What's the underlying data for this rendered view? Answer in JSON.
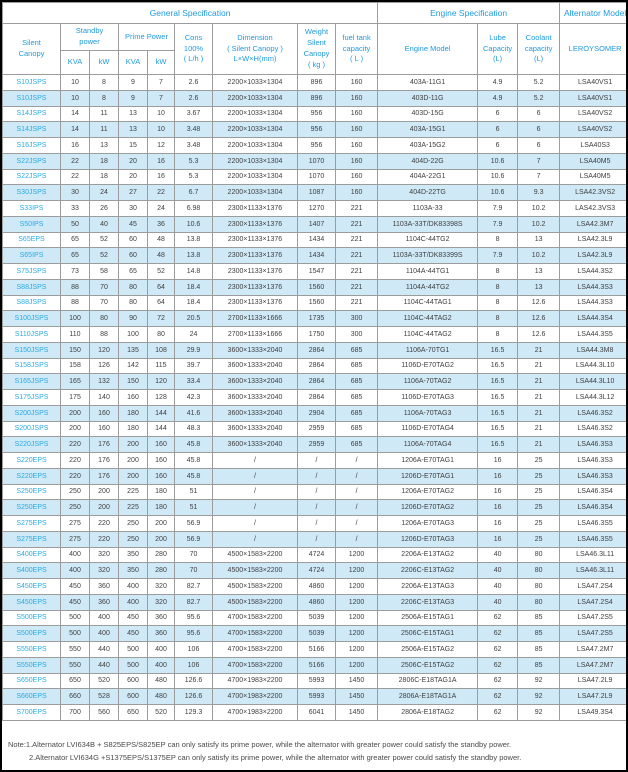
{
  "header": {
    "general": "General Specification",
    "engine": "Engine Specification",
    "alternator": "Alternator Model",
    "silent_canopy": "Silent\nCanopy",
    "standby": "Standby\npower",
    "prime": "Prime Power",
    "units": [
      "KVA",
      "kW",
      "KVA",
      "kW"
    ],
    "cons": "Cons\n100%\n( L/h )",
    "dimension": "Dimension\n( Silent Canopy )\nL×W×H(mm)",
    "weight": "Weight\nSilent\nCanopy\n( kg )",
    "fuel": "fuel tank\ncapacity\n( L )",
    "engine_model": "Engine Model",
    "lube": "Lube\nCapacity\n(L)",
    "coolant": "Coolant\ncapacity\n(L)",
    "leroysomer": "LEROYSOMER"
  },
  "table": {
    "column_keys": [
      "silent_canopy",
      "standby_kva",
      "standby_kw",
      "prime_kva",
      "prime_kw",
      "cons_100pct_lph",
      "dimension_lwh_mm",
      "weight_kg",
      "fuel_tank_l",
      "engine_model",
      "lube_capacity_l",
      "coolant_capacity_l",
      "alternator_leroysomer"
    ],
    "rows": [
      [
        "S10JSPS",
        "10",
        "8",
        "9",
        "7",
        "2.6",
        "2200×1033×1304",
        "896",
        "160",
        "403A-11G1",
        "4.9",
        "5.2",
        "LSA40VS1"
      ],
      [
        "S10JSPS",
        "10",
        "8",
        "9",
        "7",
        "2.6",
        "2200×1033×1304",
        "896",
        "160",
        "403D-11G",
        "4.9",
        "5.2",
        "LSA40VS1"
      ],
      [
        "S14JSPS",
        "14",
        "11",
        "13",
        "10",
        "3.67",
        "2200×1033×1304",
        "956",
        "160",
        "403D-15G",
        "6",
        "6",
        "LSA40VS2"
      ],
      [
        "S14JSPS",
        "14",
        "11",
        "13",
        "10",
        "3.48",
        "2200×1033×1304",
        "956",
        "160",
        "403A-15G1",
        "6",
        "6",
        "LSA40VS2"
      ],
      [
        "S16JSPS",
        "16",
        "13",
        "15",
        "12",
        "3.48",
        "2200×1033×1304",
        "956",
        "160",
        "403A-15G2",
        "6",
        "6",
        "LSA40S3"
      ],
      [
        "S22JSPS",
        "22",
        "18",
        "20",
        "16",
        "5.3",
        "2200×1033×1304",
        "1070",
        "160",
        "404D-22G",
        "10.6",
        "7",
        "LSA40M5"
      ],
      [
        "S22JSPS",
        "22",
        "18",
        "20",
        "16",
        "5.3",
        "2200×1033×1304",
        "1070",
        "160",
        "404A-22G1",
        "10.6",
        "7",
        "LSA40M5"
      ],
      [
        "S30JSPS",
        "30",
        "24",
        "27",
        "22",
        "6.7",
        "2200×1033×1304",
        "1087",
        "160",
        "404D-22TG",
        "10.6",
        "9.3",
        "LSA42.3VS2"
      ],
      [
        "S33IPS",
        "33",
        "26",
        "30",
        "24",
        "6.98",
        "2300×1133×1376",
        "1270",
        "221",
        "1103A-33",
        "7.9",
        "10.2",
        "LAS42.3VS3"
      ],
      [
        "S50IPS",
        "50",
        "40",
        "45",
        "36",
        "10.6",
        "2300×1133×1376",
        "1407",
        "221",
        "1103A-33T/DK83398S",
        "7.9",
        "10.2",
        "LSA42.3M7"
      ],
      [
        "S65EPS",
        "65",
        "52",
        "60",
        "48",
        "13.8",
        "2300×1133×1376",
        "1434",
        "221",
        "1104C-44TG2",
        "8",
        "13",
        "LSA42.3L9"
      ],
      [
        "S65IPS",
        "65",
        "52",
        "60",
        "48",
        "13.8",
        "2300×1133×1376",
        "1434",
        "221",
        "1103A-33T/DK83399S",
        "7.9",
        "10.2",
        "LSA42.3L9"
      ],
      [
        "S75JSPS",
        "73",
        "58",
        "65",
        "52",
        "14.8",
        "2300×1133×1376",
        "1547",
        "221",
        "1104A-44TG1",
        "8",
        "13",
        "LSA44.3S2"
      ],
      [
        "S88JSPS",
        "88",
        "70",
        "80",
        "64",
        "18.4",
        "2300×1133×1376",
        "1560",
        "221",
        "1104A-44TG2",
        "8",
        "13",
        "LSA44.3S3"
      ],
      [
        "S88JSPS",
        "88",
        "70",
        "80",
        "64",
        "18.4",
        "2300×1133×1376",
        "1560",
        "221",
        "1104C-44TAG1",
        "8",
        "12.6",
        "LSA44.3S3"
      ],
      [
        "S100JSPS",
        "100",
        "80",
        "90",
        "72",
        "20.5",
        "2700×1133×1666",
        "1735",
        "300",
        "1104C-44TAG2",
        "8",
        "12.6",
        "LSA44.3S4"
      ],
      [
        "S110JSPS",
        "110",
        "88",
        "100",
        "80",
        "24",
        "2700×1133×1666",
        "1750",
        "300",
        "1104C-44TAG2",
        "8",
        "12.6",
        "LSA44.3S5"
      ],
      [
        "S150JSPS",
        "150",
        "120",
        "135",
        "108",
        "29.9",
        "3600×1333×2040",
        "2864",
        "685",
        "1106A-70TG1",
        "16.5",
        "21",
        "LSA44.3M8"
      ],
      [
        "S158JSPS",
        "158",
        "126",
        "142",
        "115",
        "39.7",
        "3600×1333×2040",
        "2864",
        "685",
        "1106D-E70TAG2",
        "16.5",
        "21",
        "LSA44.3L10"
      ],
      [
        "S165JSPS",
        "165",
        "132",
        "150",
        "120",
        "33.4",
        "3600×1333×2040",
        "2864",
        "685",
        "1106A-70TAG2",
        "16.5",
        "21",
        "LSA44.3L10"
      ],
      [
        "S175JSPS",
        "175",
        "140",
        "160",
        "128",
        "42.3",
        "3600×1333×2040",
        "2864",
        "685",
        "1106D-E70TAG3",
        "16.5",
        "21",
        "LSA44.3L12"
      ],
      [
        "S200JSPS",
        "200",
        "160",
        "180",
        "144",
        "41.6",
        "3600×1333×2040",
        "2904",
        "685",
        "1106A-70TAG3",
        "16.5",
        "21",
        "LSA46.3S2"
      ],
      [
        "S200JSPS",
        "200",
        "160",
        "180",
        "144",
        "48.3",
        "3600×1333×2040",
        "2959",
        "685",
        "1106D-E70TAG4",
        "16.5",
        "21",
        "LSA46.3S2"
      ],
      [
        "S220JSPS",
        "220",
        "176",
        "200",
        "160",
        "45.8",
        "3600×1333×2040",
        "2959",
        "685",
        "1106A-70TAG4",
        "16.5",
        "21",
        "LSA46.3S3"
      ],
      [
        "S220EPS",
        "220",
        "176",
        "200",
        "160",
        "45.8",
        "/",
        "/",
        "/",
        "1206A-E70TAG1",
        "16",
        "25",
        "LSA46.3S3"
      ],
      [
        "S220EPS",
        "220",
        "176",
        "200",
        "160",
        "45.8",
        "/",
        "/",
        "/",
        "1206D-E70TAG1",
        "16",
        "25",
        "LSA46.3S3"
      ],
      [
        "S250EPS",
        "250",
        "200",
        "225",
        "180",
        "51",
        "/",
        "/",
        "/",
        "1206A-E70TAG2",
        "16",
        "25",
        "LSA46.3S4"
      ],
      [
        "S250EPS",
        "250",
        "200",
        "225",
        "180",
        "51",
        "/",
        "/",
        "/",
        "1206D-E70TAG2",
        "16",
        "25",
        "LSA46.3S4"
      ],
      [
        "S275EPS",
        "275",
        "220",
        "250",
        "200",
        "56.9",
        "/",
        "/",
        "/",
        "1206A-E70TAG3",
        "16",
        "25",
        "LSA46.3S5"
      ],
      [
        "S275EPS",
        "275",
        "220",
        "250",
        "200",
        "56.9",
        "/",
        "/",
        "/",
        "1206D-E70TAG3",
        "16",
        "25",
        "LSA46.3S5"
      ],
      [
        "S400EPS",
        "400",
        "320",
        "350",
        "280",
        "70",
        "4500×1583×2200",
        "4724",
        "1200",
        "2206A-E13TAG2",
        "40",
        "80",
        "LSA46.3L11"
      ],
      [
        "S400EPS",
        "400",
        "320",
        "350",
        "280",
        "70",
        "4500×1583×2200",
        "4724",
        "1200",
        "2206C-E13TAG2",
        "40",
        "80",
        "LSA46.3L11"
      ],
      [
        "S450EPS",
        "450",
        "360",
        "400",
        "320",
        "82.7",
        "4500×1583×2200",
        "4860",
        "1200",
        "2206A-E13TAG3",
        "40",
        "80",
        "LSA47.2S4"
      ],
      [
        "S450EPS",
        "450",
        "360",
        "400",
        "320",
        "82.7",
        "4500×1583×2200",
        "4860",
        "1200",
        "2206C-E13TAG3",
        "40",
        "80",
        "LSA47.2S4"
      ],
      [
        "S500EPS",
        "500",
        "400",
        "450",
        "360",
        "95.6",
        "4700×1583×2200",
        "5039",
        "1200",
        "2506A-E15TAG1",
        "62",
        "85",
        "LSA47.2S5"
      ],
      [
        "S500EPS",
        "500",
        "400",
        "450",
        "360",
        "95.6",
        "4700×1583×2200",
        "5039",
        "1200",
        "2506C-E15TAG1",
        "62",
        "85",
        "LSA47.2S5"
      ],
      [
        "S550EPS",
        "550",
        "440",
        "500",
        "400",
        "106",
        "4700×1583×2200",
        "5166",
        "1200",
        "2506A-E15TAG2",
        "62",
        "85",
        "LSA47.2M7"
      ],
      [
        "S550EPS",
        "550",
        "440",
        "500",
        "400",
        "106",
        "4700×1583×2200",
        "5166",
        "1200",
        "2506C-E15TAG2",
        "62",
        "85",
        "LSA47.2M7"
      ],
      [
        "S650EPS",
        "650",
        "520",
        "600",
        "480",
        "126.6",
        "4700×1983×2200",
        "5993",
        "1450",
        "2806C-E18TAG1A",
        "62",
        "92",
        "LSA47.2L9"
      ],
      [
        "S660EPS",
        "660",
        "528",
        "600",
        "480",
        "126.6",
        "4700×1983×2200",
        "5993",
        "1450",
        "2806A-E18TAG1A",
        "62",
        "92",
        "LSA47.2L9"
      ],
      [
        "S700EPS",
        "700",
        "560",
        "650",
        "520",
        "129.3",
        "4700×1983×2200",
        "6041",
        "1450",
        "2806A-E18TAG2",
        "62",
        "92",
        "LSA49.3S4"
      ]
    ]
  },
  "notes": {
    "line1": "Note:1.Alternator LVI634B + S825EPS/S825EP can only satisfy its prime power, while the alternator with greater power could satisfy the standby power.",
    "line2": "2.Alternator LVI634G +S1375EPS/S1375EP can only satisfy its prime power, while the alternator with greater power could satisfy the standby power."
  },
  "colors": {
    "header_text": "#1e9ae0",
    "model_text": "#29abe2",
    "row_stripe": "#cfe9f7",
    "data_text": "#3f3f3f",
    "grid_border": "#9c9c9c",
    "outer_border": "#000000"
  }
}
